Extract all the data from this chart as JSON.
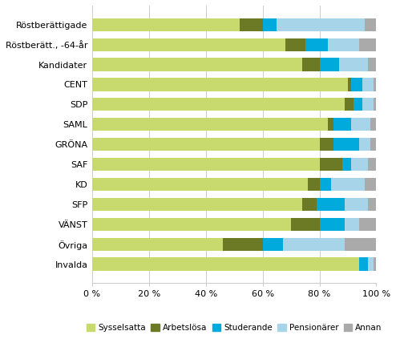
{
  "categories": [
    "Röstberättigade",
    "Röstberätt., -64-år",
    "Kandidater",
    "CENT",
    "SDP",
    "SAML",
    "GRÖNA",
    "SAF",
    "KD",
    "SFP",
    "VÄNST",
    "Övriga",
    "Invalda"
  ],
  "series": {
    "Sysselsatta": [
      52,
      68,
      74,
      90,
      89,
      83,
      80,
      80,
      76,
      74,
      70,
      46,
      94
    ],
    "Arbetslösa": [
      8,
      7,
      6,
      1,
      3,
      2,
      5,
      8,
      4,
      5,
      10,
      14,
      0
    ],
    "Studerande": [
      5,
      8,
      7,
      4,
      3,
      6,
      9,
      3,
      4,
      10,
      9,
      7,
      3
    ],
    "Pensionärer": [
      31,
      11,
      10,
      4,
      4,
      7,
      4,
      6,
      12,
      8,
      5,
      22,
      2
    ],
    "Annan": [
      4,
      6,
      3,
      1,
      1,
      2,
      2,
      3,
      4,
      3,
      6,
      11,
      1
    ]
  },
  "colors": {
    "Sysselsatta": "#c8da6e",
    "Arbetslösa": "#6d7a25",
    "Studerande": "#00aadd",
    "Pensionärer": "#a8d4ea",
    "Annan": "#aaaaaa"
  },
  "xlim": [
    0,
    100
  ],
  "xtick_labels": [
    "0 %",
    "20 %",
    "40 %",
    "60 %",
    "80 %",
    "100 %"
  ],
  "xtick_values": [
    0,
    20,
    40,
    60,
    80,
    100
  ],
  "legend_order": [
    "Sysselsatta",
    "Arbetslösa",
    "Studerande",
    "Pensionärer",
    "Annan"
  ],
  "figsize": [
    4.94,
    4.23
  ],
  "dpi": 100
}
